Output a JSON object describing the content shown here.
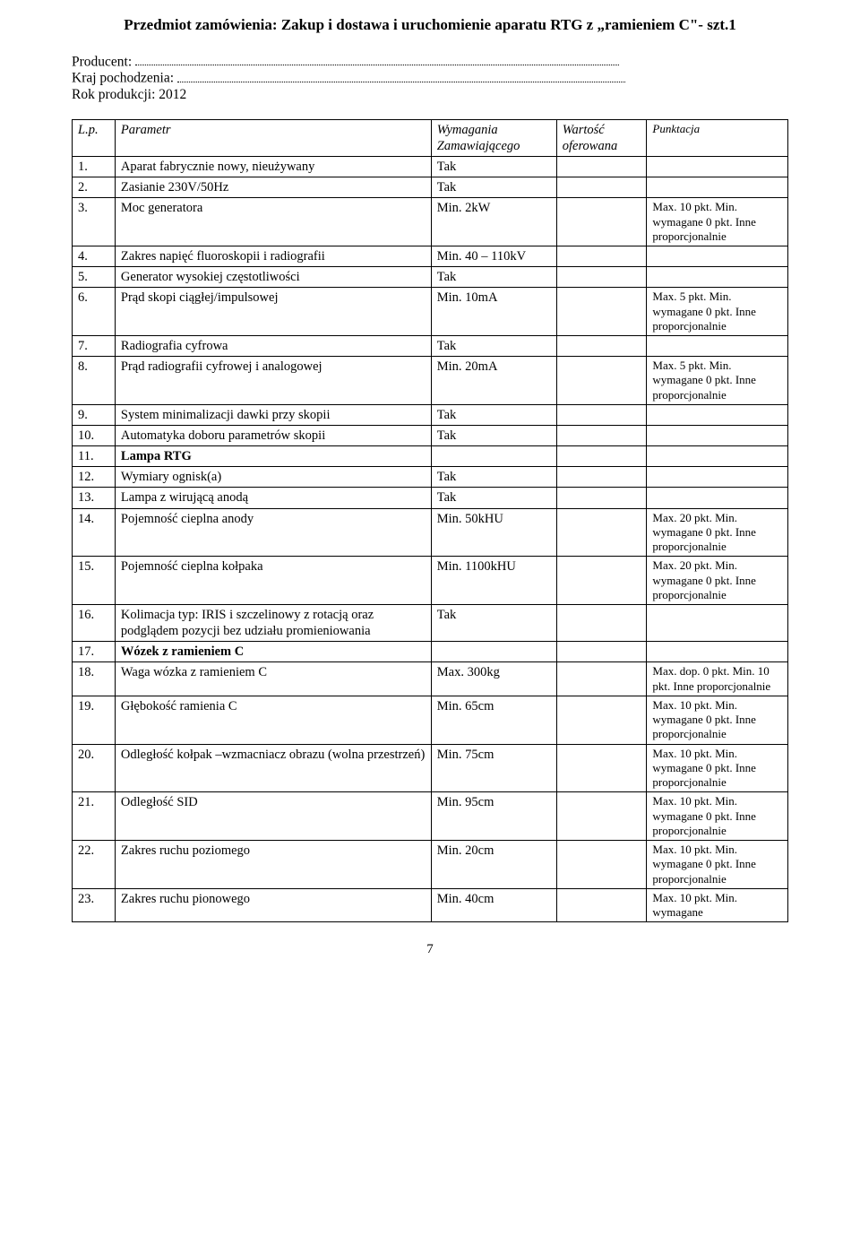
{
  "title": "Przedmiot zamówienia: Zakup i dostawa i uruchomienie aparatu RTG z „ramieniem C\"- szt.1",
  "intro": {
    "producer_label": "Producent:",
    "origin_label": "Kraj pochodzenia:",
    "year_label": "Rok produkcji: 2012"
  },
  "header": {
    "lp": "L.p.",
    "param": "Parametr",
    "req": "Wymagania Zamawiającego",
    "off": "Wartość oferowana",
    "score": "Punktacja"
  },
  "rows": [
    {
      "lp": "1.",
      "param": "Aparat fabrycznie nowy, nieużywany",
      "req": "Tak",
      "score": "",
      "bold": false
    },
    {
      "lp": "2.",
      "param": "Zasianie 230V/50Hz",
      "req": "Tak",
      "score": "",
      "bold": false
    },
    {
      "lp": "3.",
      "param": "Moc generatora",
      "req": "Min. 2kW",
      "score": "Max. 10 pkt. Min. wymagane 0 pkt. Inne proporcjonalnie",
      "bold": false
    },
    {
      "lp": "4.",
      "param": "Zakres napięć fluoroskopii i radiografii",
      "req": "Min. 40 – 110kV",
      "score": "",
      "bold": false
    },
    {
      "lp": "5.",
      "param": "Generator wysokiej częstotliwości",
      "req": "Tak",
      "score": "",
      "bold": false
    },
    {
      "lp": "6.",
      "param": "Prąd skopi ciągłej/impulsowej",
      "req": "Min. 10mA",
      "score": "Max. 5 pkt. Min. wymagane 0 pkt. Inne proporcjonalnie",
      "bold": false
    },
    {
      "lp": "7.",
      "param": "Radiografia cyfrowa",
      "req": "Tak",
      "score": "",
      "bold": false
    },
    {
      "lp": "8.",
      "param": "Prąd radiografii cyfrowej i analogowej",
      "req": "Min. 20mA",
      "score": "Max. 5 pkt. Min. wymagane 0 pkt. Inne proporcjonalnie",
      "bold": false
    },
    {
      "lp": "9.",
      "param": "System minimalizacji dawki przy skopii",
      "req": "Tak",
      "score": "",
      "bold": false
    },
    {
      "lp": "10.",
      "param": "Automatyka doboru parametrów skopii",
      "req": "Tak",
      "score": "",
      "bold": false
    },
    {
      "lp": "11.",
      "param": "Lampa RTG",
      "req": "",
      "score": "",
      "bold": true
    },
    {
      "lp": "12.",
      "param": "Wymiary ognisk(a)",
      "req": "Tak",
      "score": "",
      "bold": false,
      "indent": true
    },
    {
      "lp": "13.",
      "param": "Lampa z wirującą anodą",
      "req": "Tak",
      "score": "",
      "bold": false,
      "indent": true
    },
    {
      "lp": "14.",
      "param": "Pojemność cieplna anody",
      "req": "Min. 50kHU",
      "score": "Max. 20 pkt. Min. wymagane 0 pkt. Inne proporcjonalnie",
      "bold": false,
      "indent": true
    },
    {
      "lp": "15.",
      "param": "Pojemność cieplna kołpaka",
      "req": "Min. 1100kHU",
      "score": "Max. 20 pkt. Min. wymagane 0 pkt. Inne proporcjonalnie",
      "bold": false,
      "indent": true
    },
    {
      "lp": "16.",
      "param": "Kolimacja typ: IRIS i szczelinowy z rotacją oraz podglądem pozycji bez udziału promieniowania",
      "req": "Tak",
      "score": "",
      "bold": false,
      "indent": true
    },
    {
      "lp": "17.",
      "param": "Wózek z ramieniem C",
      "req": "",
      "score": "",
      "bold": true
    },
    {
      "lp": "18.",
      "param": "Waga wózka z ramieniem C",
      "req": "Max. 300kg",
      "score": "Max. dop.  0 pkt.  Min. 10 pkt. Inne proporcjonalnie",
      "bold": false,
      "indent": true
    },
    {
      "lp": "19.",
      "param": "Głębokość ramienia C",
      "req": "Min. 65cm",
      "score": "Max. 10 pkt. Min. wymagane 0 pkt. Inne proporcjonalnie",
      "bold": false,
      "indent": true
    },
    {
      "lp": "20.",
      "param": "Odległość kołpak –wzmacniacz obrazu (wolna przestrzeń)",
      "req": "Min. 75cm",
      "score": "Max. 10 pkt. Min. wymagane 0 pkt. Inne proporcjonalnie",
      "bold": false,
      "indent": true
    },
    {
      "lp": "21.",
      "param": "Odległość SID",
      "req": "Min. 95cm",
      "score": "Max. 10 pkt. Min. wymagane 0 pkt. Inne proporcjonalnie",
      "bold": false,
      "indent": true
    },
    {
      "lp": "22.",
      "param": "Zakres ruchu poziomego",
      "req": "Min. 20cm",
      "score": "Max. 10 pkt. Min. wymagane 0 pkt. Inne proporcjonalnie",
      "bold": false,
      "indent": true
    },
    {
      "lp": "23.",
      "param": "Zakres ruchu pionowego",
      "req": "Min. 40cm",
      "score": "Max. 10 pkt. Min. wymagane",
      "bold": false,
      "indent": true
    }
  ],
  "page_number": "7"
}
